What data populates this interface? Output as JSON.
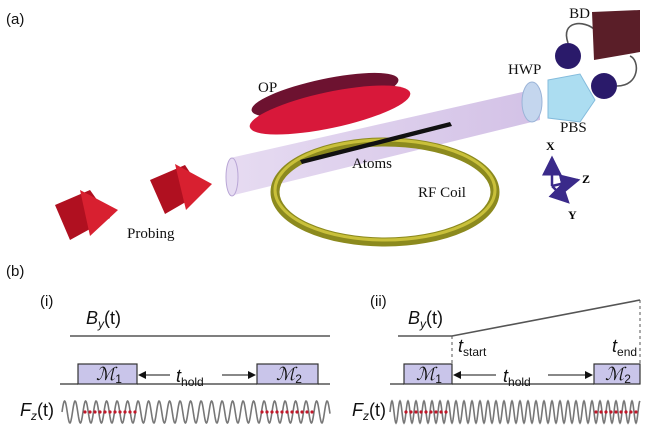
{
  "panel_a": {
    "label": "(a)",
    "bd": "BD",
    "op": "OP",
    "hwp": "HWP",
    "pbs": "PBS",
    "atoms": "Atoms",
    "rf_coil": "RF Coil",
    "probing": "Probing",
    "axis_x": "X",
    "axis_z": "Z",
    "axis_y": "Y"
  },
  "panel_b": {
    "label": "(b)",
    "i": {
      "label": "(i)",
      "field": {
        "symbol": "B",
        "sub": "y",
        "arg": "(t)"
      },
      "m1": {
        "symbol": "ℳ",
        "sub": "1"
      },
      "m2": {
        "symbol": "ℳ",
        "sub": "2"
      },
      "hold": {
        "symbol": "t",
        "sub": "hold"
      },
      "signal": {
        "symbol": "F",
        "sub": "z",
        "arg": "(t)"
      }
    },
    "ii": {
      "label": "(ii)",
      "field": {
        "symbol": "B",
        "sub": "y",
        "arg": "(t)"
      },
      "m1": {
        "symbol": "ℳ",
        "sub": "1"
      },
      "m2": {
        "symbol": "ℳ",
        "sub": "2"
      },
      "start": {
        "symbol": "t",
        "sub": "start"
      },
      "end": {
        "symbol": "t",
        "sub": "end"
      },
      "hold": {
        "symbol": "t",
        "sub": "hold"
      },
      "signal": {
        "symbol": "F",
        "sub": "z",
        "arg": "(t)"
      }
    }
  }
}
